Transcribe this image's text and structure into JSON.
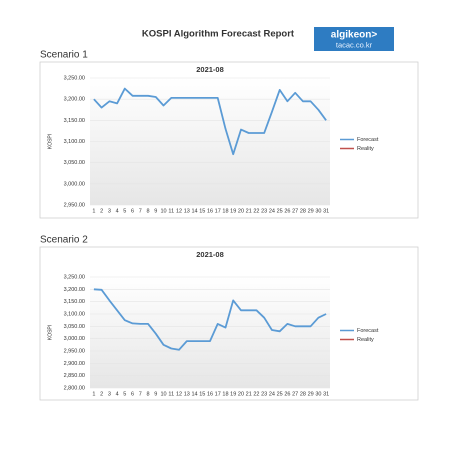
{
  "header": {
    "title": "KOSPI Algorithm Forecast Report",
    "logo": "algikeon>",
    "site": "tacac.co.kr"
  },
  "sections": [
    "Scenario 1",
    "Scenario 2"
  ],
  "chart_data": [
    {
      "type": "line",
      "title": "2021-08",
      "y_label": "KOSPI",
      "categories": [
        "1",
        "2",
        "3",
        "4",
        "5",
        "6",
        "7",
        "8",
        "9",
        "10",
        "11",
        "12",
        "13",
        "14",
        "15",
        "16",
        "17",
        "18",
        "19",
        "20",
        "21",
        "22",
        "23",
        "24",
        "25",
        "26",
        "27",
        "28",
        "29",
        "30",
        "31"
      ],
      "series": [
        {
          "name": "Forecast",
          "color": "#5b9bd5",
          "values": [
            3200,
            3180,
            3195,
            3190,
            3225,
            3208,
            3208,
            3208,
            3205,
            3185,
            3203,
            3203,
            3203,
            3203,
            3203,
            3203,
            3203,
            3130,
            3070,
            3128,
            3120,
            3120,
            3120,
            3170,
            3222,
            3195,
            3215,
            3195,
            3195,
            3175,
            3150
          ]
        },
        {
          "name": "Reality",
          "color": "#c0504d",
          "values": [
            null,
            null,
            null,
            null,
            null,
            null,
            null,
            null,
            null,
            null,
            null,
            null,
            null,
            null,
            null,
            null,
            null,
            null,
            null,
            null,
            null,
            null,
            null,
            null,
            null,
            null,
            null,
            null,
            null,
            null,
            null
          ]
        }
      ],
      "ylim": [
        2950,
        3250
      ],
      "yticks": [
        {
          "value": 2950,
          "label": "2,950.00"
        },
        {
          "value": 3000,
          "label": "3,000.00"
        },
        {
          "value": 3050,
          "label": "3,050.00"
        },
        {
          "value": 3100,
          "label": "3,100.00"
        },
        {
          "value": 3150,
          "label": "3,150.00"
        },
        {
          "value": 3200,
          "label": "3,200.00"
        },
        {
          "value": 3250,
          "label": "3,250.00"
        }
      ],
      "grid": true,
      "legend": "right"
    },
    {
      "type": "line",
      "title": "2021-08",
      "y_label": "KOSPI",
      "categories": [
        "1",
        "2",
        "3",
        "4",
        "5",
        "6",
        "7",
        "8",
        "9",
        "10",
        "11",
        "12",
        "13",
        "14",
        "15",
        "16",
        "17",
        "18",
        "19",
        "20",
        "21",
        "22",
        "23",
        "24",
        "25",
        "26",
        "27",
        "28",
        "29",
        "30",
        "31"
      ],
      "series": [
        {
          "name": "Forecast",
          "color": "#5b9bd5",
          "values": [
            3200,
            3198,
            3155,
            3115,
            3075,
            3062,
            3060,
            3060,
            3020,
            2975,
            2960,
            2955,
            2990,
            2990,
            2990,
            2990,
            3060,
            3045,
            3155,
            3115,
            3115,
            3115,
            3085,
            3035,
            3030,
            3060,
            3050,
            3050,
            3050,
            3085,
            3100
          ]
        },
        {
          "name": "Reality",
          "color": "#c0504d",
          "values": [
            null,
            null,
            null,
            null,
            null,
            null,
            null,
            null,
            null,
            null,
            null,
            null,
            null,
            null,
            null,
            null,
            null,
            null,
            null,
            null,
            null,
            null,
            null,
            null,
            null,
            null,
            null,
            null,
            null,
            null,
            null
          ]
        }
      ],
      "ylim": [
        2800,
        3250
      ],
      "yticks": [
        {
          "value": 2800,
          "label": "2,800.00"
        },
        {
          "value": 2850,
          "label": "2,850.00"
        },
        {
          "value": 2900,
          "label": "2,900.00"
        },
        {
          "value": 2950,
          "label": "2,950.00"
        },
        {
          "value": 3000,
          "label": "3,000.00"
        },
        {
          "value": 3050,
          "label": "3,050.00"
        },
        {
          "value": 3100,
          "label": "3,100.00"
        },
        {
          "value": 3150,
          "label": "3,150.00"
        },
        {
          "value": 3200,
          "label": "3,200.00"
        },
        {
          "value": 3250,
          "label": "3,250.00"
        }
      ],
      "grid": true,
      "legend": "right"
    }
  ]
}
